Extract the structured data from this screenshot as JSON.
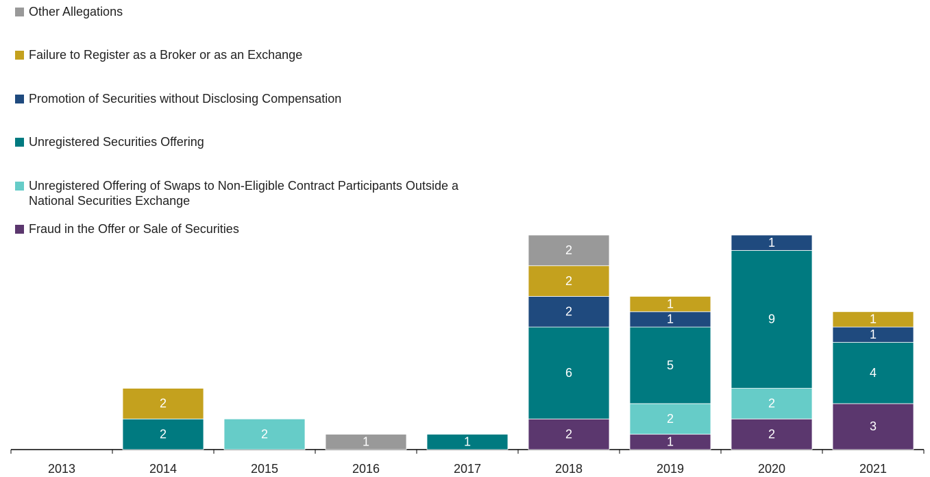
{
  "chart_data": {
    "type": "stacked-bar",
    "categories": [
      "2013",
      "2014",
      "2015",
      "2016",
      "2017",
      "2018",
      "2019",
      "2020",
      "2021"
    ],
    "series": [
      {
        "name": "Fraud in the Offer or Sale of Securities",
        "color": "#5b376e",
        "values": [
          null,
          null,
          null,
          null,
          null,
          2,
          1,
          2,
          3
        ]
      },
      {
        "name": "Unregistered Offering of Swaps to Non-Eligible Contract Participants Outside a National Securities Exchange",
        "color": "#66ccc8",
        "values": [
          null,
          null,
          2,
          null,
          null,
          null,
          2,
          2,
          null
        ]
      },
      {
        "name": "Unregistered Securities Offering",
        "color": "#007a80",
        "values": [
          null,
          2,
          null,
          null,
          1,
          6,
          5,
          9,
          4
        ]
      },
      {
        "name": "Promotion of Securities without Disclosing Compensation",
        "color": "#1f4a7e",
        "values": [
          null,
          null,
          null,
          null,
          null,
          2,
          1,
          1,
          1
        ]
      },
      {
        "name": "Failure to Register as a Broker or as an Exchange",
        "color": "#c4a11e",
        "values": [
          null,
          2,
          null,
          null,
          null,
          2,
          1,
          null,
          1
        ]
      },
      {
        "name": "Other Allegations",
        "color": "#999999",
        "values": [
          null,
          null,
          null,
          1,
          null,
          2,
          null,
          null,
          null
        ]
      }
    ],
    "ylim": [
      0,
      14
    ]
  }
}
